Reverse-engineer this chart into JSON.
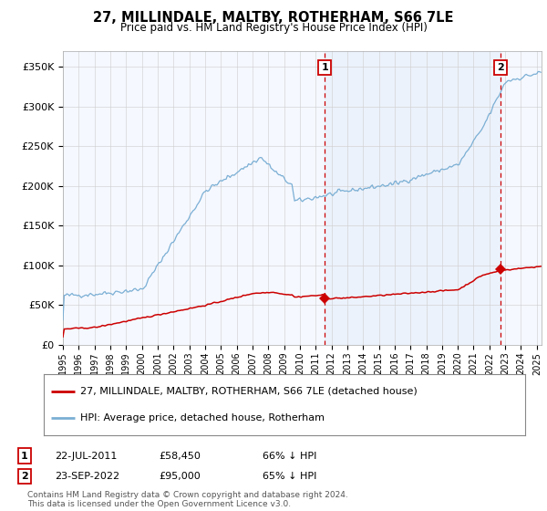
{
  "title": "27, MILLINDALE, MALTBY, ROTHERHAM, S66 7LE",
  "subtitle": "Price paid vs. HM Land Registry's House Price Index (HPI)",
  "hpi_label": "HPI: Average price, detached house, Rotherham",
  "price_label": "27, MILLINDALE, MALTBY, ROTHERHAM, S66 7LE (detached house)",
  "hpi_fill_color": "#dce8f5",
  "hpi_line_color": "#7bafd4",
  "price_color": "#cc0000",
  "vline_color": "#cc0000",
  "sale1_date": 2011.58,
  "sale1_price": 58450,
  "sale1_label": "22-JUL-2011",
  "sale1_pct": "66% ↓ HPI",
  "sale2_date": 2022.73,
  "sale2_price": 95000,
  "sale2_label": "23-SEP-2022",
  "sale2_pct": "65% ↓ HPI",
  "ylim_min": 0,
  "ylim_max": 370000,
  "xlim_min": 1995,
  "xlim_max": 2025.3,
  "background_color": "#ffffff",
  "plot_bg_color": "#f5f8ff",
  "grid_color": "#cccccc",
  "footnote": "Contains HM Land Registry data © Crown copyright and database right 2024.\nThis data is licensed under the Open Government Licence v3.0."
}
